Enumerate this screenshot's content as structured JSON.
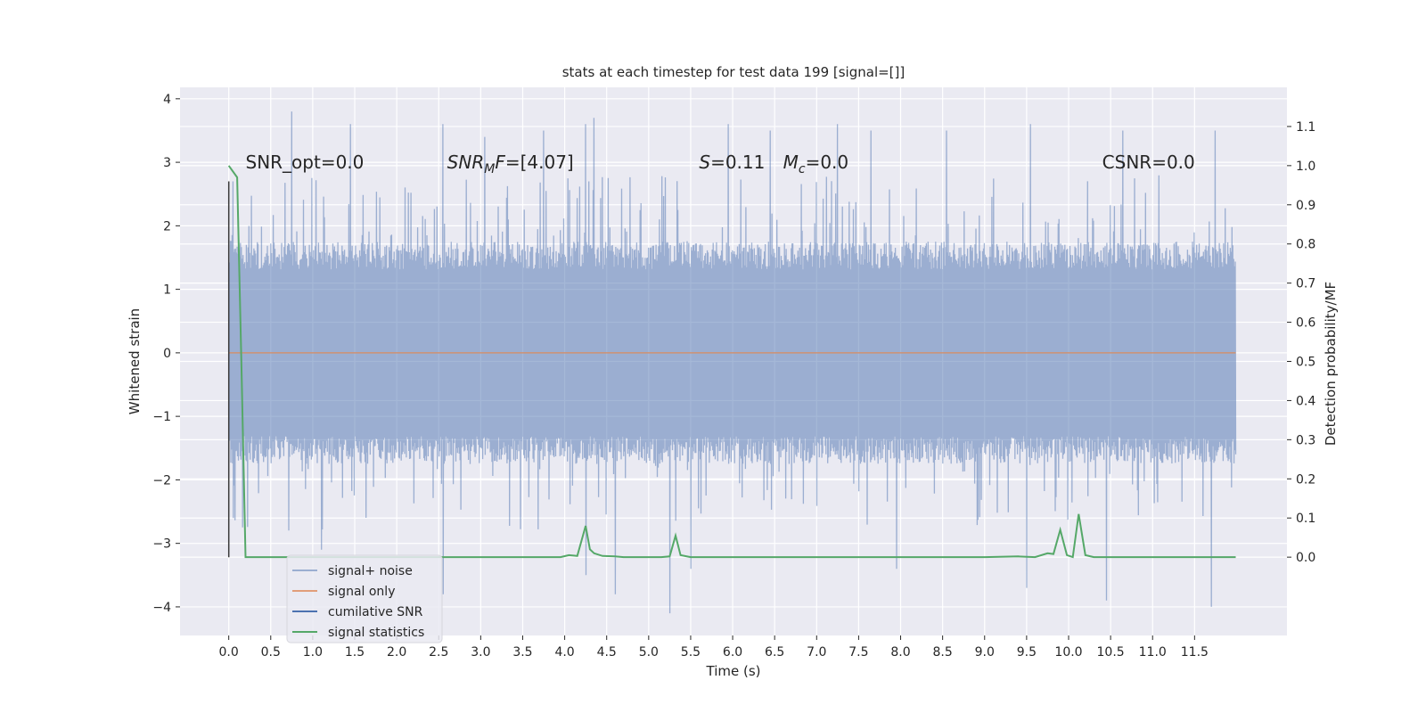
{
  "chart_data": {
    "type": "line",
    "title": "stats at each timestep for test data 199 [signal=[]]",
    "xlabel": "Time (s)",
    "ylabel_left": "Whitened strain",
    "ylabel_right": "Detection probability/MF",
    "xlim": [
      -0.58,
      12.6
    ],
    "ylim_left": [
      -4.45,
      4.18
    ],
    "ylim_right": [
      -0.2,
      1.2
    ],
    "x_ticks": [
      0.0,
      0.5,
      1.0,
      1.5,
      2.0,
      2.5,
      3.0,
      3.5,
      4.0,
      4.5,
      5.0,
      5.5,
      6.0,
      6.5,
      7.0,
      7.5,
      8.0,
      8.5,
      9.0,
      9.5,
      10.0,
      10.5,
      11.0,
      11.5
    ],
    "x_tick_labels": [
      "0.0",
      "0.5",
      "1.0",
      "1.5",
      "2.0",
      "2.5",
      "3.0",
      "3.5",
      "4.0",
      "4.5",
      "5.0",
      "5.5",
      "6.0",
      "6.5",
      "7.0",
      "7.5",
      "8.0",
      "8.5",
      "9.0",
      "9.5",
      "10.0",
      "10.5",
      "11.0",
      "11.5"
    ],
    "y_left_ticks": [
      -4,
      -3,
      -2,
      -1,
      0,
      1,
      2,
      3,
      4
    ],
    "y_left_tick_labels": [
      "−4",
      "−3",
      "−2",
      "−1",
      "0",
      "1",
      "2",
      "3",
      "4"
    ],
    "y_right_ticks": [
      0.0,
      0.1,
      0.2,
      0.3,
      0.4,
      0.5,
      0.6,
      0.7,
      0.8,
      0.9,
      1.0,
      1.1
    ],
    "y_right_tick_labels": [
      "0.0",
      "0.1",
      "0.2",
      "0.3",
      "0.4",
      "0.5",
      "0.6",
      "0.7",
      "0.8",
      "0.9",
      "1.0",
      "1.1"
    ],
    "grid": true,
    "legend_position": "bottom-left",
    "annotations": [
      {
        "text": "SNR_opt=0.0",
        "x": 0.2,
        "y": 3.0
      },
      {
        "text": "SNR",
        "sub": "M",
        "after": "F=[4.07]",
        "italic": true,
        "x": 2.6,
        "y": 3.0
      },
      {
        "text": "S",
        "after": "=0.11",
        "italic": true,
        "x": 5.6,
        "y": 3.0
      },
      {
        "text": "M",
        "sub": "c",
        "after": "=0.0",
        "italic": true,
        "x": 6.6,
        "y": 3.0
      },
      {
        "text": "CSNR=0.0",
        "x": 10.4,
        "y": 3.0
      }
    ],
    "series": [
      {
        "name": "signal+ noise",
        "axis": "left",
        "color": "#4c72b0",
        "opacity": 0.5,
        "x_range": [
          0.0,
          11.99
        ],
        "typical_envelope": [
          -1.75,
          1.75
        ],
        "peaks_upper": [
          {
            "x": 0.05,
            "y": 2.7
          },
          {
            "x": 0.75,
            "y": 3.8
          },
          {
            "x": 1.45,
            "y": 3.6
          },
          {
            "x": 2.55,
            "y": 3.6
          },
          {
            "x": 3.05,
            "y": 3.4
          },
          {
            "x": 3.75,
            "y": 3.5
          },
          {
            "x": 4.25,
            "y": 3.6
          },
          {
            "x": 4.35,
            "y": 3.7
          },
          {
            "x": 5.95,
            "y": 3.6
          },
          {
            "x": 6.45,
            "y": 3.5
          },
          {
            "x": 7.25,
            "y": 3.6
          },
          {
            "x": 7.65,
            "y": 3.5
          },
          {
            "x": 8.55,
            "y": 3.5
          },
          {
            "x": 9.55,
            "y": 3.6
          },
          {
            "x": 10.65,
            "y": 3.5
          },
          {
            "x": 11.75,
            "y": 3.5
          }
        ],
        "peaks_lower": [
          {
            "x": 0.05,
            "y": -2.6
          },
          {
            "x": 1.1,
            "y": -3.1
          },
          {
            "x": 2.55,
            "y": -3.8
          },
          {
            "x": 4.25,
            "y": -3.5
          },
          {
            "x": 4.6,
            "y": -3.8
          },
          {
            "x": 5.25,
            "y": -4.1
          },
          {
            "x": 5.5,
            "y": -3.4
          },
          {
            "x": 7.95,
            "y": -3.4
          },
          {
            "x": 9.5,
            "y": -3.7
          },
          {
            "x": 10.45,
            "y": -3.9
          },
          {
            "x": 11.7,
            "y": -4.0
          }
        ]
      },
      {
        "name": "signal only",
        "axis": "left",
        "color": "#dd8452",
        "x": [
          0.0,
          11.99
        ],
        "values": [
          0.0,
          0.0
        ]
      },
      {
        "name": "cumilative SNR",
        "axis": "left",
        "color": "#4c72b0",
        "x": [
          0.0,
          0.0
        ],
        "values": [
          -3.22,
          2.7
        ]
      },
      {
        "name": "signal statistics",
        "axis": "right",
        "color": "#55a868",
        "x": [
          0.0,
          0.1,
          0.15,
          0.2,
          1.0,
          2.0,
          3.0,
          3.95,
          4.05,
          4.15,
          4.25,
          4.3,
          4.35,
          4.45,
          4.6,
          4.7,
          5.0,
          5.15,
          5.25,
          5.32,
          5.38,
          5.5,
          6.0,
          7.0,
          8.0,
          9.0,
          9.4,
          9.6,
          9.75,
          9.82,
          9.9,
          9.98,
          10.05,
          10.12,
          10.2,
          10.3,
          10.5,
          11.0,
          11.5,
          11.99
        ],
        "values": [
          1.0,
          0.97,
          0.5,
          0.0,
          0.0,
          0.0,
          0.0,
          0.0,
          0.005,
          0.003,
          0.08,
          0.02,
          0.01,
          0.003,
          0.002,
          0.0,
          0.0,
          0.0,
          0.002,
          0.055,
          0.005,
          0.0,
          0.0,
          0.0,
          0.0,
          0.0,
          0.002,
          0.0,
          0.01,
          0.008,
          0.07,
          0.005,
          0.0,
          0.11,
          0.005,
          0.0,
          0.0,
          0.0,
          0.0,
          0.0
        ]
      }
    ]
  }
}
